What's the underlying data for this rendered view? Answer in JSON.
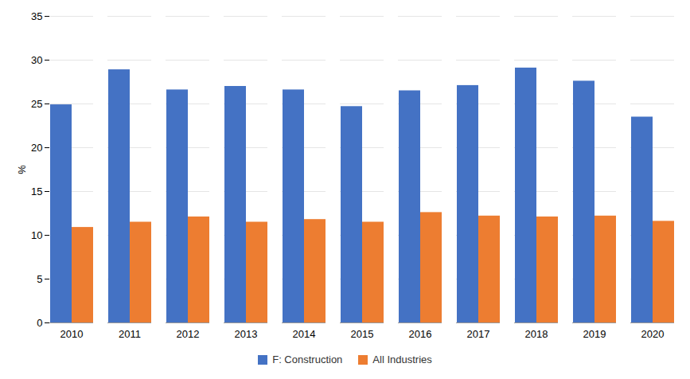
{
  "chart_data": {
    "type": "bar",
    "categories": [
      "2010",
      "2011",
      "2012",
      "2013",
      "2014",
      "2015",
      "2016",
      "2017",
      "2018",
      "2019",
      "2020"
    ],
    "series": [
      {
        "name": "F: Construction",
        "color": "#4472C4",
        "values": [
          24.9,
          28.9,
          26.6,
          27.0,
          26.6,
          24.7,
          26.5,
          27.1,
          29.1,
          27.6,
          23.5
        ]
      },
      {
        "name": "All Industries",
        "color": "#ED7D31",
        "values": [
          10.9,
          11.5,
          12.1,
          11.5,
          11.8,
          11.5,
          12.6,
          12.2,
          12.1,
          12.2,
          11.6
        ]
      }
    ],
    "ylabel": "%",
    "ylim": [
      0,
      35
    ],
    "yticks": [
      0,
      5,
      10,
      15,
      20,
      25,
      30,
      35
    ],
    "grid": true,
    "legend": "bottom"
  }
}
